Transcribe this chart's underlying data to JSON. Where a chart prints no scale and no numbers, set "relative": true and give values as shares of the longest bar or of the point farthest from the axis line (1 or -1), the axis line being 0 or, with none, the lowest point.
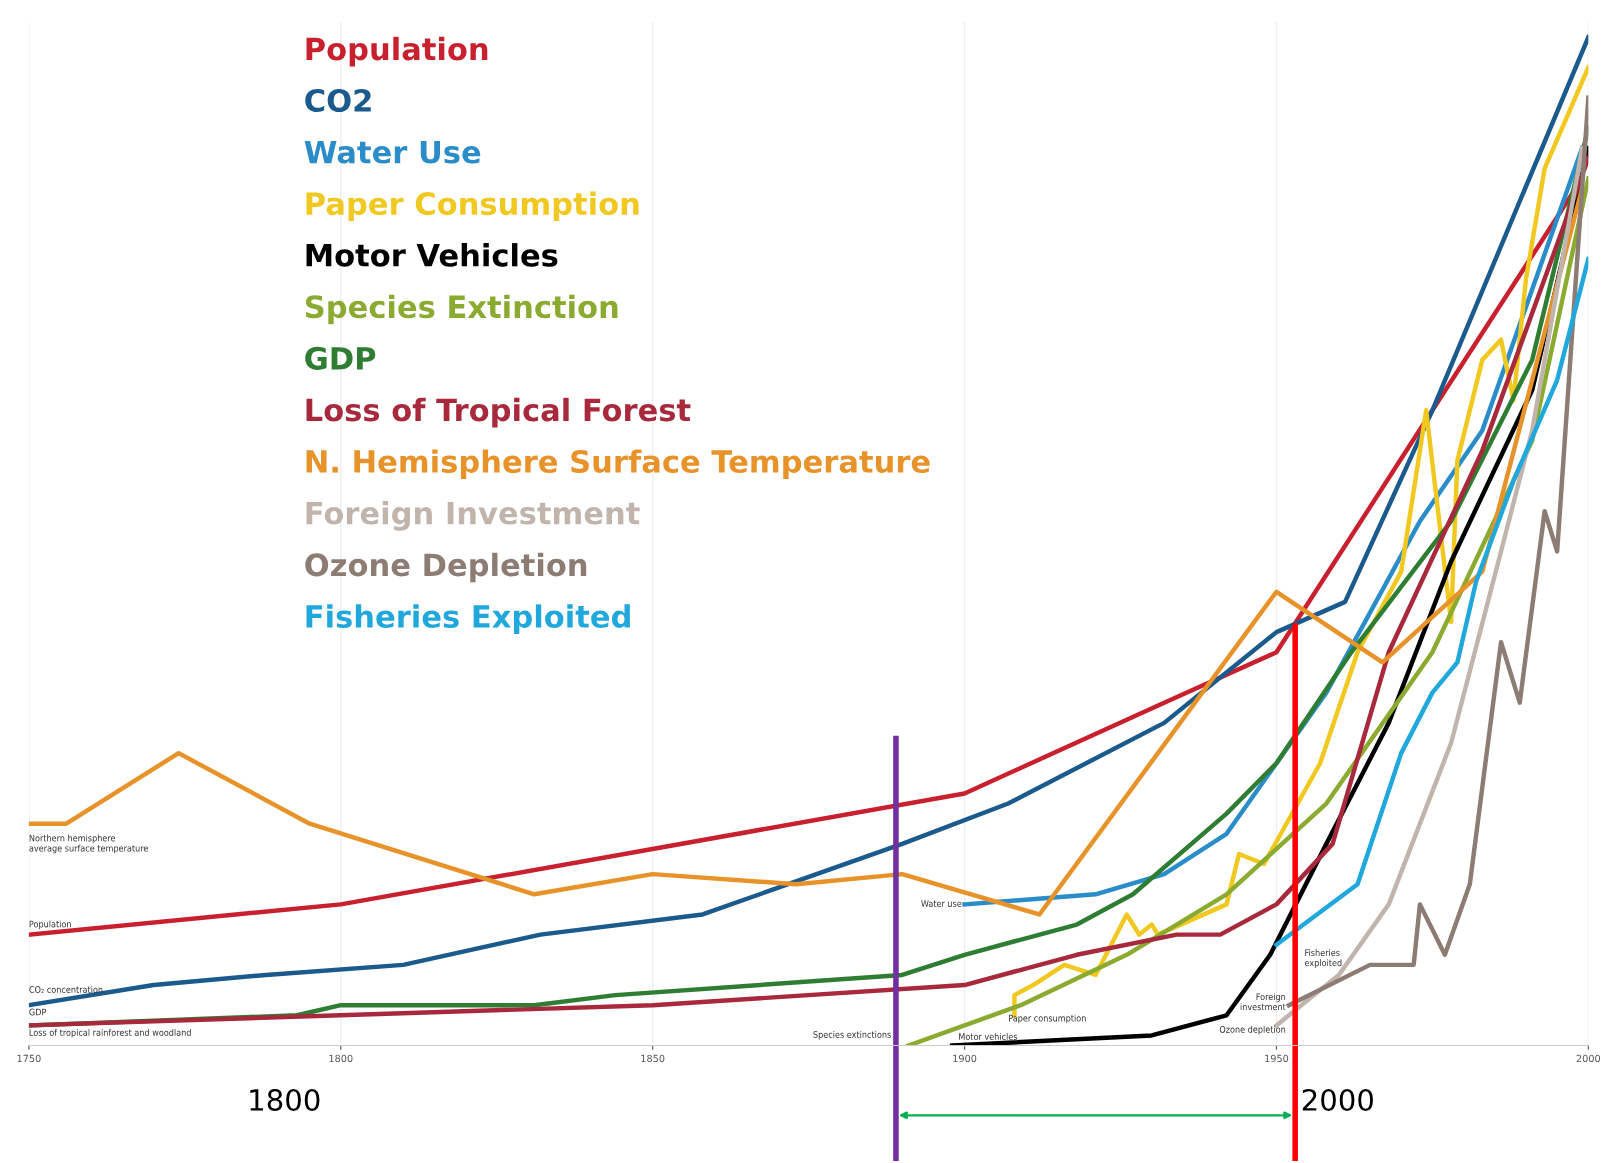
{
  "chart_data": {
    "type": "line",
    "relative": true,
    "xlim": [
      1750,
      2000
    ],
    "xticks": [
      1750,
      1800,
      1850,
      1900,
      1950,
      2000
    ],
    "grid": "x",
    "legend": "top left",
    "marker": "none",
    "line_style": "solid",
    "series": [
      {
        "name": "Population",
        "color": "#c8202e",
        "x": [
          1750,
          1800,
          1900,
          1932,
          1950,
          1975,
          1999
        ],
        "values": [
          0.11,
          0.14,
          0.25,
          0.34,
          0.39,
          0.63,
          0.86
        ]
      },
      {
        "name": "CO2",
        "color": "#1a5a8c",
        "x": [
          1750,
          1770,
          1788,
          1810,
          1832,
          1858,
          1890,
          1907,
          1932,
          1950,
          1961,
          1975,
          2000
        ],
        "values": [
          0.04,
          0.06,
          0.07,
          0.08,
          0.11,
          0.13,
          0.2,
          0.24,
          0.32,
          0.41,
          0.44,
          0.63,
          1.0
        ]
      },
      {
        "name": "Water Use",
        "color": "#2a8cc8",
        "x": [
          1900,
          1921,
          1932,
          1942,
          1950,
          1958,
          1973,
          1983,
          1999
        ],
        "values": [
          0.14,
          0.15,
          0.17,
          0.21,
          0.28,
          0.35,
          0.52,
          0.61,
          0.89
        ]
      },
      {
        "name": "Paper Consumption",
        "color": "#f0c820",
        "x": [
          1908,
          1908,
          1911,
          1916,
          1921,
          1926,
          1928,
          1930,
          1931,
          1942,
          1944,
          1948,
          1957,
          1963,
          1970,
          1974,
          1978,
          1979,
          1983,
          1986,
          1988,
          1990,
          1993,
          2000
        ],
        "values": [
          0.03,
          0.05,
          0.06,
          0.08,
          0.07,
          0.13,
          0.11,
          0.12,
          0.11,
          0.14,
          0.19,
          0.18,
          0.28,
          0.39,
          0.47,
          0.63,
          0.42,
          0.58,
          0.68,
          0.7,
          0.64,
          0.76,
          0.87,
          0.97
        ]
      },
      {
        "name": "Motor Vehicles",
        "color": "#000000",
        "x": [
          1898,
          1930,
          1942,
          1949,
          1958,
          1968,
          1978,
          1991,
          2000
        ],
        "values": [
          0.0,
          0.01,
          0.03,
          0.09,
          0.2,
          0.32,
          0.48,
          0.65,
          0.89
        ]
      },
      {
        "name": "Species Extinction",
        "color": "#8aaa30",
        "x": [
          1891,
          1909,
          1926,
          1942,
          1958,
          1975,
          1991,
          2000
        ],
        "values": [
          0.0,
          0.04,
          0.09,
          0.15,
          0.24,
          0.39,
          0.6,
          0.86
        ]
      },
      {
        "name": "GDP",
        "color": "#2e7d32",
        "x": [
          1750,
          1793,
          1800,
          1831,
          1844,
          1890,
          1900,
          1918,
          1927,
          1942,
          1950,
          1962,
          1978,
          1991,
          2000
        ],
        "values": [
          0.02,
          0.03,
          0.04,
          0.04,
          0.05,
          0.07,
          0.09,
          0.12,
          0.15,
          0.23,
          0.28,
          0.39,
          0.52,
          0.68,
          0.91
        ]
      },
      {
        "name": "Loss of Tropical Forest",
        "color": "#a8283c",
        "x": [
          1750,
          1800,
          1850,
          1900,
          1918,
          1934,
          1941,
          1950,
          1959,
          1968,
          1983,
          2000
        ],
        "values": [
          0.02,
          0.03,
          0.04,
          0.06,
          0.09,
          0.11,
          0.11,
          0.14,
          0.2,
          0.39,
          0.59,
          0.88
        ]
      },
      {
        "name": "N. Hemisphere Surface Temperature",
        "color": "#e8922a",
        "x": [
          1750,
          1756,
          1774,
          1795,
          1831,
          1850,
          1873,
          1890,
          1912,
          1950,
          1967,
          1983,
          1999
        ],
        "values": [
          0.22,
          0.22,
          0.29,
          0.22,
          0.15,
          0.17,
          0.16,
          0.17,
          0.13,
          0.45,
          0.38,
          0.47,
          0.85
        ]
      },
      {
        "name": "Foreign Investment",
        "color": "#c0b4ac",
        "x": [
          1950,
          1960,
          1968,
          1978,
          1986,
          1991,
          1999
        ],
        "values": [
          0.02,
          0.07,
          0.14,
          0.3,
          0.49,
          0.61,
          0.89
        ]
      },
      {
        "name": "Ozone Depletion",
        "color": "#8c7c74",
        "x": [
          1952,
          1965,
          1972,
          1973,
          1977,
          1981,
          1986,
          1989,
          1993,
          1995,
          2000
        ],
        "values": [
          0.04,
          0.08,
          0.08,
          0.14,
          0.09,
          0.16,
          0.4,
          0.34,
          0.53,
          0.49,
          0.94
        ]
      },
      {
        "name": "Fisheries Exploited",
        "color": "#20a8dc",
        "x": [
          1950,
          1963,
          1970,
          1975,
          1979,
          1982,
          1988,
          1995,
          2000
        ],
        "values": [
          0.1,
          0.16,
          0.29,
          0.35,
          0.38,
          0.46,
          0.56,
          0.66,
          0.78
        ]
      }
    ],
    "annotations": [
      "Northern hemisphere\naverage surface temperature",
      "Population",
      "CO₂ concentration",
      "GDP",
      "Loss of tropical rainforest and woodland",
      "Water use",
      "Species extinctions",
      "Motor vehicles",
      "Paper consumption",
      "Fisheries\nexploited",
      "Foreign\ninvestment",
      "Ozone depletion",
      "1800",
      "2000"
    ],
    "ref_lines": [
      {
        "axis": "x",
        "value": 1889,
        "color": "#7030a0"
      },
      {
        "axis": "x",
        "value": 1953,
        "color": "#ff0000"
      }
    ]
  }
}
